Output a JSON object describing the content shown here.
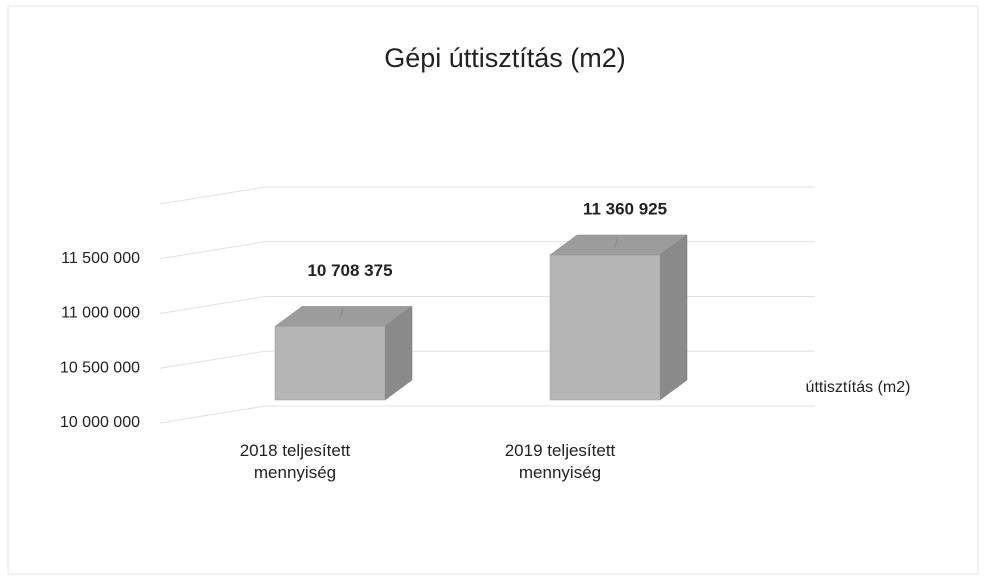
{
  "chart_data": {
    "type": "bar3d",
    "title": "Gépi úttisztítás (m2)",
    "categories": [
      "2018 teljesített mennyiség",
      "2019 teljesített mennyiség"
    ],
    "series": [
      {
        "name": "úttisztítás (m2)",
        "color": "#b5b5b5",
        "values": [
          10708375,
          11360925
        ],
        "value_labels": [
          "10 708 375",
          "11 360 925"
        ]
      }
    ],
    "ylim": [
      10000000,
      12000000
    ],
    "yticks": [
      {
        "value": 10000000,
        "label": "10 000 000"
      },
      {
        "value": 10500000,
        "label": "10 500 000"
      },
      {
        "value": 11000000,
        "label": "11 000 000"
      },
      {
        "value": 11500000,
        "label": "11 500 000"
      }
    ],
    "grid": true,
    "legend": "right"
  }
}
